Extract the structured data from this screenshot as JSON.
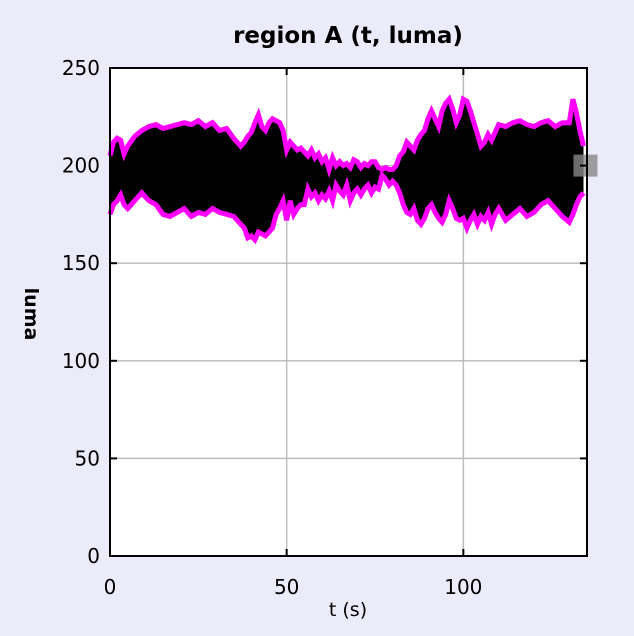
{
  "chart_data": {
    "type": "area",
    "title": "region A (t, luma)",
    "xlabel": "t (s)",
    "ylabel": "luma",
    "xlim": [
      0,
      135
    ],
    "ylim": [
      0,
      250
    ],
    "xticks": [
      0,
      50,
      100
    ],
    "yticks": [
      0,
      50,
      100,
      150,
      200,
      250
    ],
    "grid": true,
    "legend": "none",
    "colors": {
      "band_fill": "#000000",
      "envelope": "#ff00ff",
      "marker": "#888888"
    },
    "series": [
      {
        "x": [
          0,
          1,
          2,
          3,
          4,
          5,
          7,
          9,
          11,
          13,
          15,
          17,
          19,
          21,
          23,
          25,
          27,
          29,
          31,
          33,
          35,
          37,
          38,
          39,
          40,
          41,
          42,
          43,
          44,
          45,
          46,
          47,
          48,
          49,
          50,
          51,
          52,
          53,
          54,
          55,
          56,
          57,
          58,
          59,
          60,
          61,
          62,
          63,
          64,
          65,
          66,
          67,
          68,
          69,
          70,
          71,
          72,
          73,
          74,
          75,
          76,
          77,
          78,
          79,
          80,
          81,
          82,
          83,
          84,
          85,
          86,
          87,
          88,
          89,
          90,
          91,
          92,
          93,
          94,
          95,
          96,
          97,
          98,
          99,
          100,
          101,
          102,
          103,
          104,
          105,
          106,
          107,
          108,
          109,
          110,
          112,
          114,
          116,
          118,
          120,
          122,
          124,
          126,
          128,
          130,
          131,
          132,
          133,
          134
        ],
        "upper": [
          205,
          212,
          214,
          213,
          206,
          210,
          215,
          218,
          220,
          221,
          219,
          220,
          221,
          222,
          221,
          223,
          220,
          222,
          218,
          219,
          214,
          210,
          212,
          215,
          217,
          222,
          226,
          220,
          218,
          222,
          224,
          223,
          222,
          218,
          208,
          212,
          210,
          208,
          209,
          207,
          205,
          208,
          204,
          206,
          202,
          204,
          198,
          204,
          200,
          202,
          200,
          201,
          199,
          203,
          202,
          199,
          201,
          200,
          202,
          202,
          199,
          198,
          199,
          198,
          198,
          200,
          205,
          207,
          212,
          210,
          208,
          213,
          216,
          218,
          224,
          228,
          224,
          220,
          228,
          232,
          234,
          229,
          222,
          226,
          234,
          233,
          228,
          222,
          216,
          210,
          212,
          216,
          213,
          217,
          221,
          220,
          222,
          223,
          221,
          220,
          222,
          223,
          220,
          222,
          222,
          234,
          227,
          218,
          210
        ],
        "lower": [
          175,
          180,
          182,
          185,
          180,
          178,
          182,
          186,
          182,
          180,
          175,
          174,
          176,
          178,
          174,
          176,
          175,
          178,
          176,
          175,
          174,
          170,
          168,
          163,
          164,
          162,
          166,
          165,
          164,
          166,
          168,
          175,
          178,
          182,
          172,
          182,
          175,
          178,
          180,
          180,
          188,
          184,
          186,
          182,
          185,
          183,
          187,
          182,
          190,
          187,
          185,
          190,
          182,
          186,
          188,
          185,
          188,
          190,
          186,
          189,
          188,
          195,
          193,
          190,
          192,
          190,
          186,
          180,
          176,
          175,
          178,
          172,
          170,
          173,
          178,
          180,
          176,
          173,
          171,
          175,
          182,
          178,
          173,
          172,
          173,
          168,
          172,
          175,
          170,
          174,
          172,
          176,
          170,
          175,
          178,
          172,
          175,
          178,
          174,
          176,
          180,
          182,
          178,
          174,
          171,
          175,
          180,
          184,
          186
        ]
      }
    ],
    "marker": {
      "x": 134,
      "y": 200
    }
  }
}
